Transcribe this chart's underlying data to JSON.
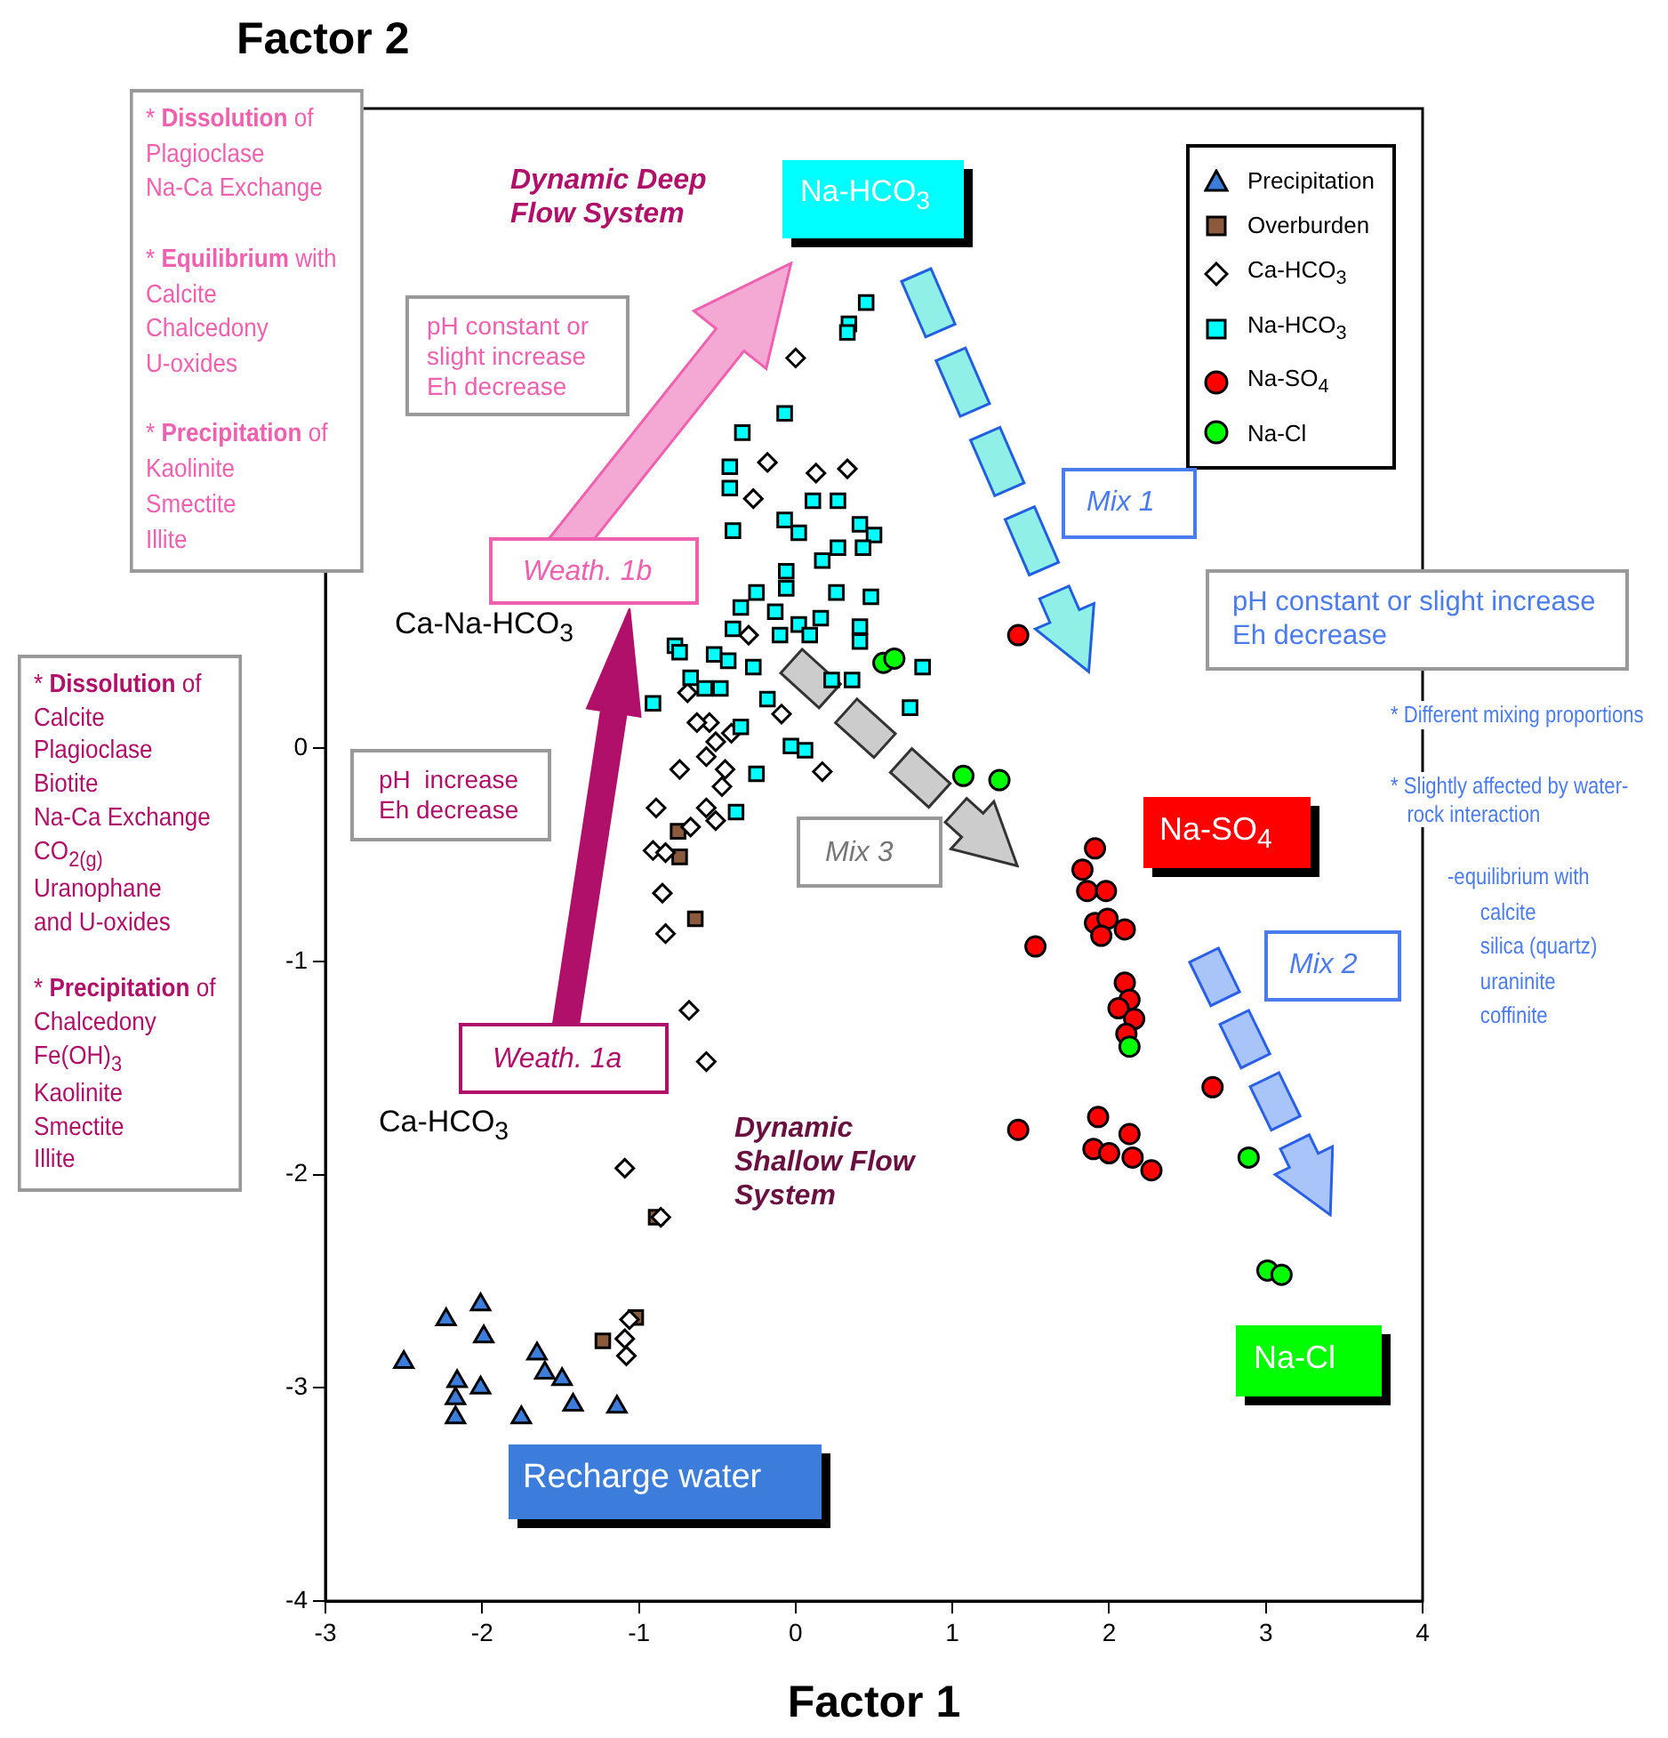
{
  "chart_data": {
    "type": "scatter",
    "xlabel": "Factor 1",
    "ylabel": "Factor 2",
    "xlim": [
      -3,
      4
    ],
    "xticks": [
      -3,
      -2,
      -1,
      0,
      1,
      2,
      3,
      4
    ],
    "ylim": [
      -4,
      3
    ],
    "yticks": [
      -4,
      -3,
      -2,
      -1,
      0
    ],
    "grid": false,
    "legend": "top right",
    "series": [
      {
        "name": "Precipitation",
        "color": "#3c7ddc",
        "marker": "triangle",
        "x": [
          -2.5,
          -2.23,
          -2.01,
          -1.99,
          -2.16,
          -2.17,
          -2.17,
          -2.01,
          -1.75,
          -1.65,
          -1.6,
          -1.49,
          -1.42,
          -1.14
        ],
        "values": [
          -2.88,
          -2.68,
          -2.61,
          -2.76,
          -2.97,
          -3.05,
          -3.14,
          -3.0,
          -3.14,
          -2.84,
          -2.93,
          -2.96,
          -3.08,
          -3.09
        ]
      },
      {
        "name": "Overburden",
        "color": "#8b5a3c",
        "marker": "square",
        "x": [
          -0.75,
          -0.74,
          -0.64,
          -0.89,
          -1.02,
          -1.23
        ],
        "values": [
          -0.39,
          -0.51,
          -0.8,
          -2.2,
          -2.67,
          -2.78
        ]
      },
      {
        "name": "Ca-HCO$_{3}$",
        "color": "#ffffff",
        "marker": "diamond",
        "x": [
          0.0,
          -0.18,
          0.13,
          0.33,
          -0.27,
          -0.09,
          -0.74,
          -0.57,
          0.17,
          -0.45,
          -0.51,
          -0.55,
          -0.41,
          -0.63,
          -0.69,
          -0.57,
          -0.51,
          -0.89,
          -0.67,
          -0.3,
          -0.47,
          -0.91,
          -0.83,
          -0.85,
          -0.83,
          -0.68,
          -0.57,
          null,
          -1.09,
          -0.86,
          -1.06,
          -1.09,
          -1.08
        ],
        "values": [
          1.83,
          1.34,
          1.29,
          1.31,
          1.17,
          0.16,
          -0.1,
          -0.04,
          -0.11,
          -0.1,
          0.03,
          0.12,
          0.07,
          0.12,
          0.26,
          -0.28,
          -0.34,
          -0.28,
          -0.37,
          0.53,
          -0.18,
          -0.48,
          -0.49,
          -0.68,
          -0.87,
          -1.23,
          -1.47,
          null,
          -1.97,
          -2.2,
          -2.68,
          -2.77,
          -2.85
        ]
      },
      {
        "name": "Na-HCO$_{3}$",
        "color": "#00ffff",
        "marker": "square",
        "x": [
          0.45,
          0.34,
          0.33,
          -0.07,
          -0.34,
          -0.42,
          -0.42,
          -0.4,
          -0.07,
          0.02,
          0.11,
          0.27,
          0.41,
          0.5,
          0.43,
          0.27,
          0.17,
          -0.06,
          -0.06,
          -0.25,
          -0.35,
          -0.4,
          -0.13,
          -0.1,
          0.02,
          0.16,
          0.26,
          0.48,
          0.41,
          0.41,
          0.09,
          -0.77,
          -0.74,
          -0.52,
          -0.43,
          -0.67,
          -0.48,
          -0.58,
          -0.27,
          0.81,
          0.36,
          0.23,
          -0.91,
          -0.18,
          0.73,
          -0.35,
          -0.03,
          0.06,
          -0.25,
          -0.38
        ],
        "values": [
          2.09,
          1.99,
          1.95,
          1.57,
          1.48,
          1.32,
          1.22,
          1.02,
          1.07,
          1.01,
          1.16,
          1.16,
          1.05,
          1.0,
          0.94,
          0.94,
          0.88,
          0.83,
          0.75,
          0.73,
          0.66,
          0.56,
          0.64,
          0.53,
          0.58,
          0.61,
          0.73,
          0.71,
          0.57,
          0.5,
          0.53,
          0.48,
          0.45,
          0.44,
          0.41,
          0.33,
          0.28,
          0.28,
          0.38,
          0.38,
          0.32,
          0.32,
          0.21,
          0.23,
          0.19,
          0.1,
          0.01,
          -0.01,
          -0.12,
          -0.3
        ]
      },
      {
        "name": "Na-SO$_{4}$",
        "color": "#ff0000",
        "marker": "circle",
        "x": [
          1.42,
          1.91,
          1.83,
          1.86,
          1.98,
          1.91,
          1.99,
          1.95,
          2.1,
          1.53,
          2.1,
          2.13,
          2.06,
          2.16,
          2.11,
          2.66,
          1.42,
          1.93,
          2.13,
          1.9,
          2.0,
          2.15,
          2.27
        ],
        "values": [
          0.53,
          -0.47,
          -0.57,
          -0.67,
          -0.67,
          -0.82,
          -0.8,
          -0.88,
          -0.85,
          -0.93,
          -1.1,
          -1.18,
          -1.22,
          -1.27,
          -1.34,
          -1.59,
          -1.79,
          -1.73,
          -1.81,
          -1.88,
          -1.9,
          -1.92,
          -1.98
        ]
      },
      {
        "name": "Na-Cl",
        "color": "#00ff00",
        "marker": "circle",
        "x": [
          0.56,
          0.63,
          1.07,
          1.3,
          2.13,
          2.89,
          3.01,
          3.1
        ],
        "values": [
          0.4,
          0.42,
          -0.13,
          -0.15,
          -1.4,
          -1.92,
          -2.45,
          -2.47
        ]
      }
    ],
    "annotations": [
      "* Dissolution of\nPlagioclase\nNa-Ca Exchange\n\n* Equilibrium with\nCalcite\nChalcedony\nU-oxides\n\n* Precipitation of\nKaolinite\nSmectite\nIllite",
      "* Dissolution of\nCalcite\nPlagioclase\nBiotite\nNa-Ca Exchange\nCO$_{2(g)}$\nUranophane\nand U-oxides\n\n* Precipitation of\nChalcedony\nFe(OH)$_{3}$\nKaolinite\nSmectite\nIllite",
      "Dynamic Deep\nFlow System",
      "Na-HCO$_{3}$",
      "pH constant or\nslight increase\nEh decrease",
      "Weath. 1b",
      "Ca-Na-HCO$_{3}$",
      "pH  increase\nEh decrease",
      "Weath. 1a",
      "Ca-HCO$_{3}$",
      "Dynamic\nShallow Flow\nSystem",
      "Mix 1",
      "Mix 3",
      "pH constant or slight increase\nEh decrease",
      "* Different mixing proportions",
      "* Slightly affected by water-\n   rock interaction",
      "-equilibrium with\n      calcite\n      silica (quartz)\n      uraninite\n      coffinite",
      "Na-SO$_{4}$",
      "Mix 2",
      "Na-Cl",
      "Recharge water"
    ]
  }
}
